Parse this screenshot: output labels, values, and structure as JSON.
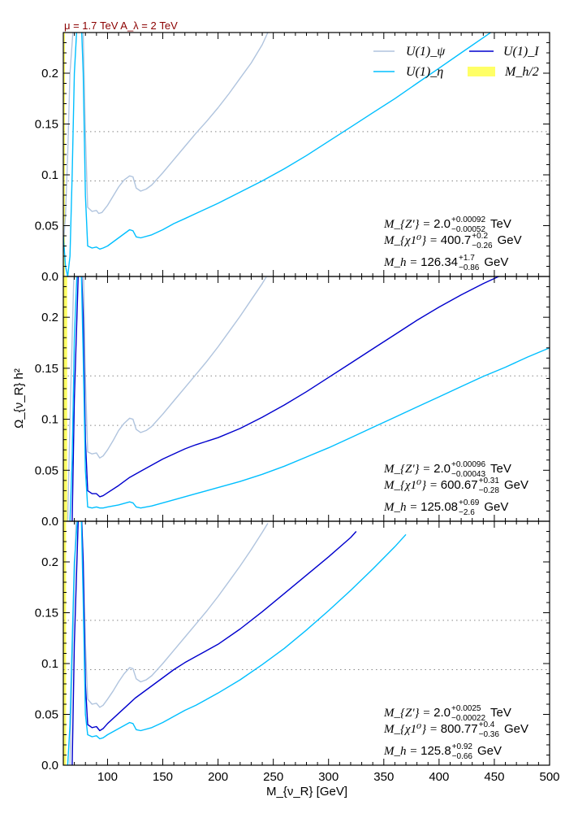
{
  "figure": {
    "top_title": "μ = 1.7 TeV  A_λ = 2 TeV",
    "top_title_color": "#8b0000",
    "ylabel": "Ω_{ν_R} h²",
    "xlabel": "M_{ν_R} [GeV]",
    "xlabel_unit": "[GeV]"
  },
  "legend": {
    "entries": [
      {
        "key": "psi",
        "label": "U(1)_ψ",
        "color": "#b0c4de",
        "kind": "line"
      },
      {
        "key": "I",
        "label": "U(1)_I",
        "color": "#0000cd",
        "kind": "line"
      },
      {
        "key": "eta",
        "label": "U(1)_η",
        "color": "#00bfff",
        "kind": "line"
      },
      {
        "key": "mh2",
        "label": "M_h/2",
        "color": "#ffff66",
        "kind": "band"
      }
    ]
  },
  "chart_data": [
    {
      "type": "line",
      "panel": "top",
      "xlim": [
        60,
        500
      ],
      "ylim": [
        0,
        0.24
      ],
      "xticks": [
        100,
        150,
        200,
        250,
        300,
        350,
        400,
        450,
        500
      ],
      "yticks": [
        0.0,
        0.05,
        0.1,
        0.15,
        0.2
      ],
      "ytick_labels": [
        "0.0",
        "0.05",
        "0.1",
        "0.15",
        "0.2"
      ],
      "hlines": [
        0.094,
        0.1425
      ],
      "band": [
        60.5,
        61.5
      ],
      "annotations": [
        {
          "prefix": "M_{Z'} =",
          "value": "2.0",
          "sup": "+0.00092",
          "sub": "−0.00052",
          "unit": "TeV"
        },
        {
          "prefix": "M_{χ1⁰} =",
          "value": "400.7",
          "sup": "+0.2",
          "sub": "−0.26",
          "unit": "GeV"
        },
        {
          "prefix": "M_h =",
          "value": "126.34",
          "sup": "+1.7",
          "sub": "−0.86",
          "unit": "GeV"
        }
      ],
      "series": [
        {
          "name": "U(1)_ψ",
          "color": "#b0c4de",
          "x": [
            60,
            62,
            64,
            66,
            70,
            74,
            76,
            78,
            80,
            82,
            86,
            90,
            92,
            95,
            100,
            105,
            110,
            115,
            120,
            123,
            126,
            130,
            135,
            140,
            150,
            160,
            170,
            180,
            190,
            200,
            210,
            220,
            230,
            240,
            245
          ],
          "y": [
            0.03,
            0.06,
            0.12,
            0.2,
            0.26,
            0.26,
            0.26,
            0.24,
            0.14,
            0.068,
            0.064,
            0.065,
            0.062,
            0.063,
            0.07,
            0.079,
            0.088,
            0.095,
            0.099,
            0.098,
            0.087,
            0.084,
            0.086,
            0.09,
            0.102,
            0.115,
            0.128,
            0.141,
            0.153,
            0.166,
            0.18,
            0.195,
            0.21,
            0.228,
            0.24
          ]
        },
        {
          "name": "U(1)_η",
          "color": "#00bfff",
          "x": [
            60,
            62,
            64,
            66,
            68,
            70,
            73,
            76,
            78,
            80,
            82,
            86,
            90,
            93,
            96,
            100,
            105,
            110,
            115,
            120,
            123,
            126,
            130,
            140,
            150,
            160,
            170,
            180,
            200,
            220,
            240,
            260,
            280,
            300,
            320,
            340,
            360,
            380,
            400,
            420,
            440,
            460,
            480,
            500
          ],
          "y": [
            0.04,
            0.01,
            0.0,
            0.02,
            0.1,
            0.2,
            0.26,
            0.26,
            0.2,
            0.08,
            0.03,
            0.028,
            0.029,
            0.027,
            0.028,
            0.03,
            0.034,
            0.038,
            0.042,
            0.046,
            0.045,
            0.039,
            0.038,
            0.041,
            0.046,
            0.052,
            0.057,
            0.062,
            0.072,
            0.083,
            0.094,
            0.106,
            0.119,
            0.133,
            0.147,
            0.161,
            0.175,
            0.19,
            0.205,
            0.22,
            0.235,
            0.25,
            0.265,
            0.28
          ]
        }
      ]
    },
    {
      "type": "line",
      "panel": "middle",
      "xlim": [
        60,
        500
      ],
      "ylim": [
        0,
        0.24
      ],
      "xticks": [
        100,
        150,
        200,
        250,
        300,
        350,
        400,
        450,
        500
      ],
      "yticks": [
        0.0,
        0.05,
        0.1,
        0.15,
        0.2
      ],
      "ytick_labels": [
        "0.0",
        "0.05",
        "0.1",
        "0.15",
        "0.2"
      ],
      "hlines": [
        0.094,
        0.1425
      ],
      "band": [
        60,
        63.5
      ],
      "annotations": [
        {
          "prefix": "M_{Z'} =",
          "value": "2.0",
          "sup": "+0.00096",
          "sub": "−0.00043",
          "unit": "TeV"
        },
        {
          "prefix": "M_{χ1⁰} =",
          "value": "600.67",
          "sup": "+0.31",
          "sub": "−0.28",
          "unit": "GeV"
        },
        {
          "prefix": "M_h =",
          "value": "125.08",
          "sup": "+0.69",
          "sub": "−2.6",
          "unit": "GeV"
        }
      ],
      "series": [
        {
          "name": "U(1)_ψ",
          "color": "#b0c4de",
          "x": [
            64,
            66,
            70,
            74,
            78,
            80,
            82,
            86,
            90,
            93,
            96,
            100,
            105,
            110,
            115,
            120,
            123,
            126,
            130,
            135,
            140,
            150,
            160,
            170,
            180,
            190,
            200,
            210,
            220,
            230,
            240,
            245
          ],
          "y": [
            0.0,
            0.1,
            0.26,
            0.26,
            0.26,
            0.14,
            0.068,
            0.066,
            0.067,
            0.062,
            0.064,
            0.07,
            0.079,
            0.089,
            0.096,
            0.101,
            0.1,
            0.09,
            0.087,
            0.089,
            0.093,
            0.105,
            0.118,
            0.131,
            0.144,
            0.157,
            0.171,
            0.186,
            0.201,
            0.217,
            0.233,
            0.242
          ]
        },
        {
          "name": "U(1)_I",
          "color": "#0000cd",
          "x": [
            68,
            70,
            74,
            76,
            78,
            80,
            82,
            86,
            90,
            93,
            96,
            100,
            110,
            120,
            130,
            140,
            150,
            160,
            170,
            175,
            180,
            200,
            220,
            240,
            260,
            280,
            300,
            320,
            340,
            360,
            380,
            400,
            420,
            440,
            460
          ],
          "y": [
            0.0,
            0.12,
            0.26,
            0.26,
            0.2,
            0.08,
            0.03,
            0.027,
            0.027,
            0.024,
            0.025,
            0.028,
            0.035,
            0.043,
            0.049,
            0.055,
            0.061,
            0.066,
            0.071,
            0.073,
            0.075,
            0.082,
            0.091,
            0.102,
            0.114,
            0.127,
            0.141,
            0.155,
            0.169,
            0.183,
            0.197,
            0.21,
            0.222,
            0.233,
            0.243
          ]
        },
        {
          "name": "U(1)_η",
          "color": "#00bfff",
          "x": [
            66,
            68,
            70,
            73,
            76,
            78,
            80,
            82,
            86,
            90,
            93,
            96,
            100,
            110,
            120,
            123,
            126,
            130,
            140,
            150,
            160,
            180,
            200,
            220,
            240,
            260,
            280,
            300,
            320,
            340,
            360,
            380,
            400,
            420,
            440,
            460,
            480,
            500
          ],
          "y": [
            0.0,
            0.06,
            0.18,
            0.26,
            0.26,
            0.16,
            0.05,
            0.014,
            0.013,
            0.014,
            0.013,
            0.013,
            0.014,
            0.016,
            0.019,
            0.018,
            0.014,
            0.013,
            0.015,
            0.018,
            0.021,
            0.027,
            0.033,
            0.039,
            0.046,
            0.054,
            0.063,
            0.072,
            0.082,
            0.092,
            0.102,
            0.112,
            0.122,
            0.132,
            0.142,
            0.151,
            0.161,
            0.17
          ]
        }
      ]
    },
    {
      "type": "line",
      "panel": "bottom",
      "xlim": [
        60,
        500
      ],
      "ylim": [
        0,
        0.24
      ],
      "xticks": [
        100,
        150,
        200,
        250,
        300,
        350,
        400,
        450,
        500
      ],
      "xtick_labels": [
        "100",
        "150",
        "200",
        "250",
        "300",
        "350",
        "400",
        "450",
        "500"
      ],
      "yticks": [
        0.0,
        0.05,
        0.1,
        0.15,
        0.2
      ],
      "ytick_labels": [
        "0.0",
        "0.05",
        "0.1",
        "0.15",
        "0.2"
      ],
      "hlines": [
        0.094,
        0.1425
      ],
      "band": [
        60,
        62.5
      ],
      "annotations": [
        {
          "prefix": "M_{Z'} =",
          "value": "2.0",
          "sup": "+0.0025",
          "sub": "−0.00022",
          "unit": "TeV"
        },
        {
          "prefix": "M_{χ1⁰} =",
          "value": "800.77",
          "sup": "+0.4",
          "sub": "−0.36",
          "unit": "GeV"
        },
        {
          "prefix": "M_h =",
          "value": "125.8",
          "sup": "+0.92",
          "sub": "−0.66",
          "unit": "GeV"
        }
      ],
      "series": [
        {
          "name": "U(1)_ψ",
          "color": "#b0c4de",
          "x": [
            66,
            68,
            72,
            76,
            78,
            80,
            82,
            86,
            90,
            93,
            96,
            100,
            105,
            110,
            115,
            120,
            123,
            126,
            130,
            135,
            140,
            150,
            160,
            170,
            180,
            190,
            200,
            210,
            220,
            230,
            240,
            245
          ],
          "y": [
            0.0,
            0.1,
            0.26,
            0.26,
            0.2,
            0.12,
            0.065,
            0.06,
            0.061,
            0.057,
            0.059,
            0.065,
            0.073,
            0.082,
            0.09,
            0.096,
            0.095,
            0.085,
            0.082,
            0.084,
            0.088,
            0.1,
            0.113,
            0.126,
            0.139,
            0.152,
            0.166,
            0.181,
            0.196,
            0.212,
            0.229,
            0.238
          ]
        },
        {
          "name": "U(1)_I",
          "color": "#0000cd",
          "x": [
            68,
            70,
            74,
            76,
            78,
            80,
            82,
            86,
            90,
            93,
            96,
            100,
            110,
            120,
            125,
            130,
            140,
            150,
            160,
            170,
            180,
            200,
            220,
            240,
            260,
            280,
            300,
            320,
            325
          ],
          "y": [
            0.0,
            0.12,
            0.26,
            0.26,
            0.2,
            0.08,
            0.04,
            0.037,
            0.038,
            0.034,
            0.036,
            0.041,
            0.051,
            0.061,
            0.066,
            0.07,
            0.078,
            0.086,
            0.094,
            0.101,
            0.107,
            0.119,
            0.134,
            0.151,
            0.169,
            0.187,
            0.205,
            0.224,
            0.23
          ]
        },
        {
          "name": "U(1)_η",
          "color": "#00bfff",
          "x": [
            64,
            66,
            70,
            74,
            76,
            78,
            80,
            82,
            86,
            90,
            93,
            96,
            100,
            110,
            120,
            123,
            126,
            130,
            140,
            150,
            160,
            170,
            180,
            200,
            220,
            240,
            260,
            280,
            300,
            320,
            340,
            360,
            370
          ],
          "y": [
            0.0,
            0.04,
            0.2,
            0.26,
            0.26,
            0.16,
            0.05,
            0.03,
            0.028,
            0.029,
            0.026,
            0.027,
            0.03,
            0.036,
            0.042,
            0.041,
            0.035,
            0.034,
            0.037,
            0.042,
            0.048,
            0.054,
            0.059,
            0.071,
            0.084,
            0.099,
            0.115,
            0.133,
            0.152,
            0.172,
            0.193,
            0.215,
            0.227
          ]
        }
      ]
    }
  ]
}
